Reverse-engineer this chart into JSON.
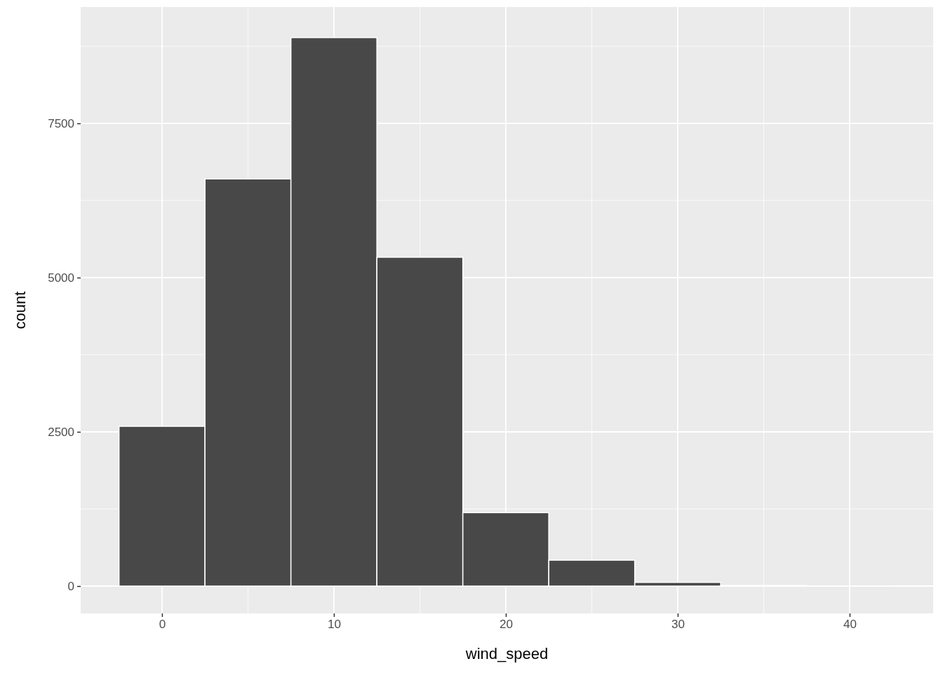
{
  "chart_data": {
    "type": "histogram",
    "xlabel": "wind_speed",
    "ylabel": "count",
    "bins": [
      -2.5,
      2.5,
      7.5,
      12.5,
      17.5,
      22.5,
      27.5,
      32.5,
      37.5,
      42.5
    ],
    "values": [
      2590,
      6600,
      8890,
      5330,
      1190,
      420,
      60,
      10,
      2
    ],
    "color": "#484848",
    "xlim": [
      -4.73,
      44.86
    ],
    "xticks": [
      0,
      10,
      20,
      30,
      40
    ],
    "ylim": [
      -443,
      9386
    ],
    "yticks": [
      0,
      2500,
      5000,
      7500
    ],
    "grid": true
  }
}
